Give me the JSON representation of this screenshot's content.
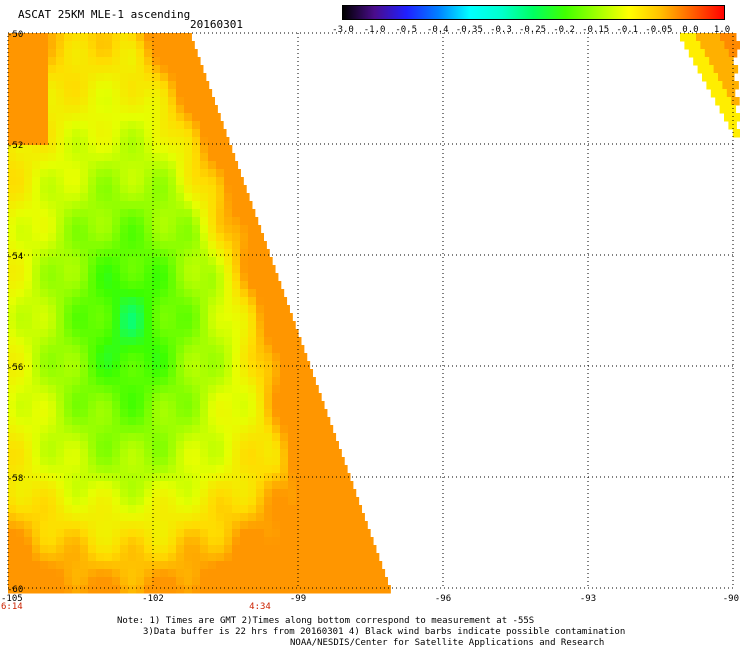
{
  "header": {
    "title": "ASCAT 25KM MLE-1 ascending",
    "date": "20160301"
  },
  "colorbar": {
    "labels": [
      "-3.0",
      "-1.0",
      "-0.5",
      "-0.4",
      "-0.35",
      "-0.3",
      "-0.25",
      "-0.2",
      "-0.15",
      "-0.1",
      "-0.05",
      "0.0",
      "1.0"
    ],
    "colors": [
      "#000000",
      "#4a0c8c",
      "#2020ff",
      "#0080ff",
      "#00ffff",
      "#00ffcc",
      "#00ff60",
      "#40ff00",
      "#a0ff00",
      "#ffff00",
      "#ffc000",
      "#ff6000",
      "#ff0000"
    ]
  },
  "axes": {
    "lat_labels": [
      "-50",
      "-52",
      "-54",
      "-56",
      "-58",
      "-60"
    ],
    "lon_labels": [
      "-105",
      "-102",
      "-99",
      "-96",
      "-93",
      "-90"
    ]
  },
  "times": [
    "6:14",
    "4:34"
  ],
  "notes": {
    "line1": "Note: 1) Times are GMT 2)Times along bottom correspond to measurement at -55S",
    "line2": "3)Data buffer is 22 hrs from 20160301 4) Black wind barbs indicate possible contamination",
    "line3": "NOAA/NESDIS/Center for Satellite Applications and Research"
  }
}
